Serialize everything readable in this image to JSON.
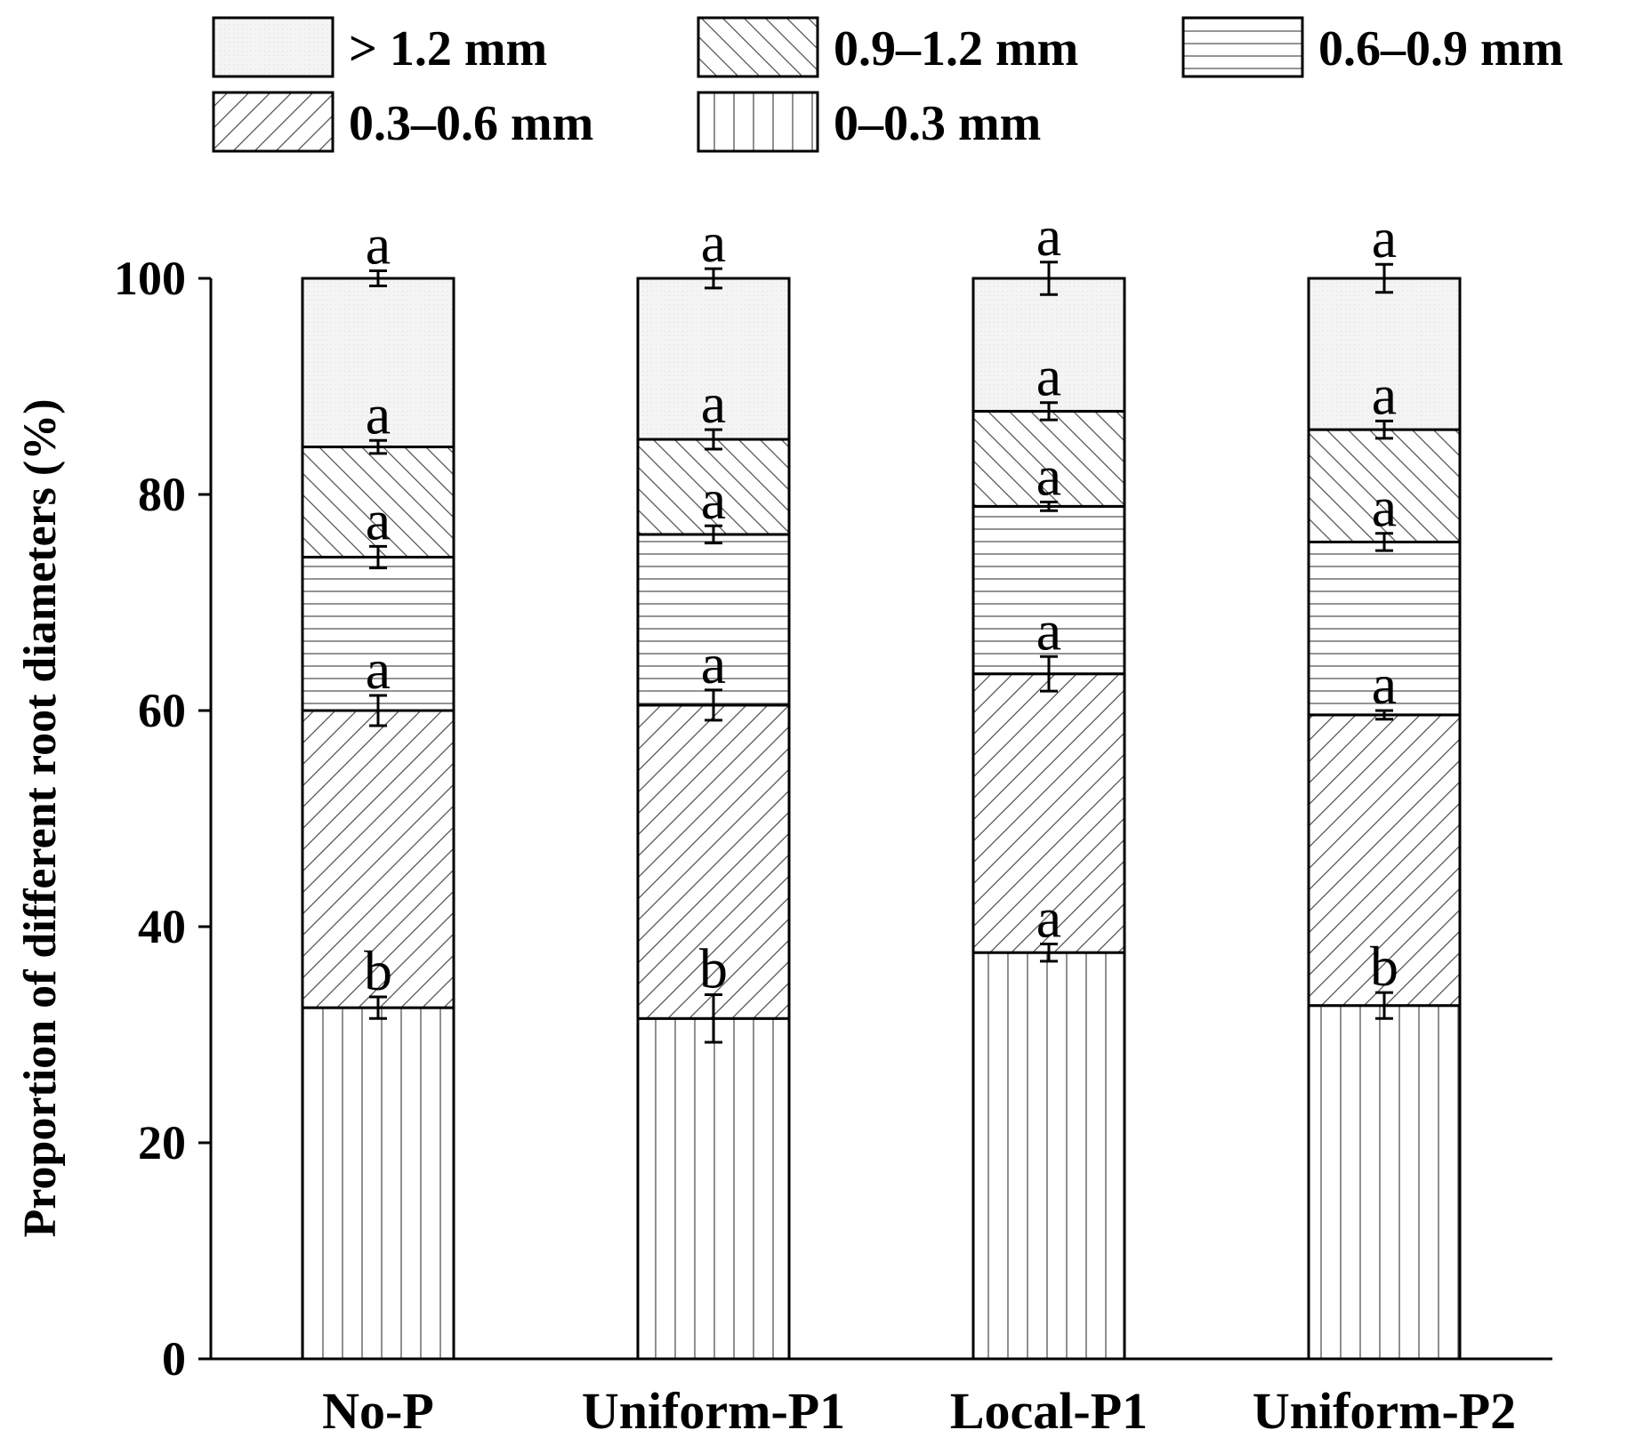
{
  "chart_data": {
    "type": "bar",
    "stacked": true,
    "ylabel": "Proportion of different root diameters (%)",
    "xlabel": "",
    "ylim": [
      0,
      100
    ],
    "yticks": [
      0,
      20,
      40,
      60,
      80,
      100
    ],
    "grid": false,
    "legend_position": "top",
    "categories": [
      "No-P",
      "Uniform-P1",
      "Local-P1",
      "Uniform-P2"
    ],
    "series": [
      {
        "name": "0–0.3 mm",
        "pattern": "vertical",
        "values": [
          32.5,
          31.5,
          37.6,
          32.7
        ],
        "errors": [
          1.0,
          2.2,
          0.8,
          1.2
        ],
        "letters": [
          "b",
          "b",
          "a",
          "b"
        ]
      },
      {
        "name": "0.3–0.6 mm",
        "pattern": "forward-diagonal",
        "values": [
          27.5,
          29.0,
          25.8,
          26.9
        ],
        "errors": [
          1.4,
          1.4,
          1.6,
          0.4
        ],
        "letters": [
          "a",
          "a",
          "a",
          "a"
        ]
      },
      {
        "name": "0.6–0.9 mm",
        "pattern": "horizontal",
        "values": [
          14.2,
          15.8,
          15.5,
          16.0
        ],
        "errors": [
          1.0,
          0.8,
          0.4,
          0.8
        ],
        "letters": [
          "a",
          "a",
          "a",
          "a"
        ]
      },
      {
        "name": "0.9–1.2 mm",
        "pattern": "backward-diagonal",
        "values": [
          10.2,
          8.8,
          8.8,
          10.4
        ],
        "errors": [
          0.6,
          0.9,
          0.8,
          0.8
        ],
        "letters": [
          "a",
          "a",
          "a",
          "a"
        ]
      },
      {
        "name": "> 1.2 mm",
        "pattern": "dots",
        "values": [
          15.6,
          14.9,
          12.3,
          14.0
        ],
        "errors": [
          0.7,
          0.9,
          1.5,
          1.3
        ],
        "letters": [
          "a",
          "a",
          "a",
          "a"
        ]
      }
    ]
  },
  "legend_order": [
    "> 1.2 mm",
    "0.9–1.2 mm",
    "0.6–0.9 mm",
    "0.3–0.6 mm",
    "0–0.3 mm"
  ]
}
